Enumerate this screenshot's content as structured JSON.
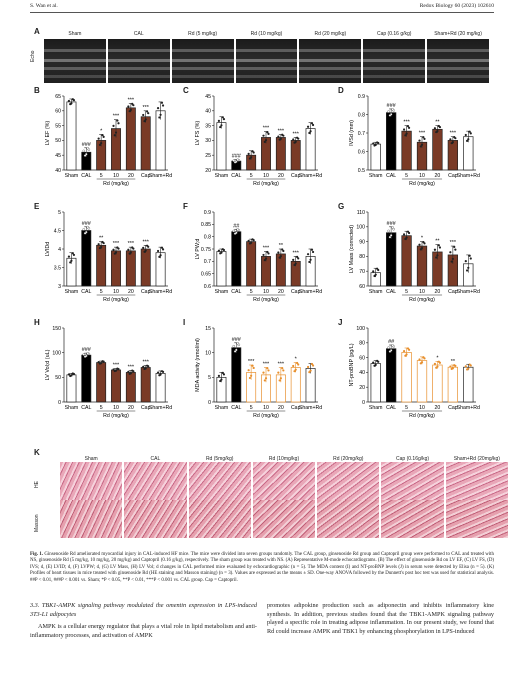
{
  "header": {
    "left": "S. Wan et al.",
    "right": "Redox Biology 60 (2023) 102610"
  },
  "panel_letters": [
    "A",
    "B",
    "C",
    "D",
    "E",
    "F",
    "G",
    "H",
    "I",
    "J",
    "K"
  ],
  "echo": {
    "side_label": "Echo",
    "groups": [
      "Sham",
      "CAL",
      "Rd (5 mg/kg)",
      "Rd (10 mg/kg)",
      "Rd (20 mg/kg)",
      "Cap (0.16 g/kg)",
      "Sham+Rd (20 mg/kg)"
    ]
  },
  "colors": {
    "sham": "#ffffff",
    "cal": "#000000",
    "rd": "#7a3a26",
    "cap": "#7a3a26",
    "shamrd": "#ffffff",
    "orange": "#e8902e",
    "dark": "#6a3020",
    "bar_outline": "#222"
  },
  "charts_common": {
    "xgroups": [
      "Sham",
      "CAL",
      "5",
      "10",
      "20",
      "Cap",
      "Sham+Rd"
    ],
    "xsub": "Rd (mg/kg)"
  },
  "chart_data": [
    {
      "id": "B",
      "type": "bar",
      "ylabel": "LV EF (%)",
      "ylim": [
        40,
        65
      ],
      "yticks": [
        40,
        45,
        50,
        55,
        60,
        65
      ],
      "categories": [
        "Sham",
        "CAL",
        "5",
        "10",
        "20",
        "Cap",
        "Sham+Rd"
      ],
      "values": [
        63,
        46,
        50,
        54,
        61,
        58,
        60
      ],
      "errors": [
        1,
        1.5,
        2,
        3,
        1.5,
        2,
        3
      ],
      "stars": [
        "",
        "###",
        "*",
        "***",
        "***",
        "***",
        ""
      ]
    },
    {
      "id": "C",
      "type": "bar",
      "ylabel": "LV FS (%)",
      "ylim": [
        20,
        45
      ],
      "yticks": [
        20,
        25,
        30,
        35,
        40,
        45
      ],
      "categories": [
        "Sham",
        "CAL",
        "5",
        "10",
        "20",
        "Cap",
        "Sham+Rd"
      ],
      "values": [
        36,
        23,
        25,
        31,
        31,
        30,
        34
      ],
      "errors": [
        2,
        0.5,
        1.5,
        2,
        1,
        1,
        2
      ],
      "stars": [
        "",
        "###",
        "",
        "***",
        "***",
        "***",
        ""
      ]
    },
    {
      "id": "D",
      "type": "bar",
      "ylabel": "IVSd (mm)",
      "ylim": [
        0.5,
        0.9
      ],
      "yticks": [
        0.5,
        0.6,
        0.7,
        0.8,
        0.9
      ],
      "categories": [
        "Sham",
        "CAL",
        "5",
        "10",
        "20",
        "Cap",
        "Sham+Rd"
      ],
      "values": [
        0.64,
        0.81,
        0.71,
        0.65,
        0.72,
        0.66,
        0.68
      ],
      "errors": [
        0.01,
        0.02,
        0.03,
        0.03,
        0.02,
        0.02,
        0.03
      ],
      "stars": [
        "",
        "###",
        "***",
        "***",
        "**",
        "***",
        ""
      ]
    },
    {
      "id": "E",
      "type": "bar",
      "ylabel": "LVIDd",
      "ylim": [
        3.0,
        5.0
      ],
      "yticks": [
        3.0,
        3.5,
        4.0,
        4.5,
        5.0
      ],
      "categories": [
        "Sham",
        "CAL",
        "5",
        "10",
        "20",
        "Cap",
        "Sham+Rd"
      ],
      "values": [
        3.75,
        4.5,
        4.1,
        3.95,
        3.95,
        4.0,
        3.9
      ],
      "errors": [
        0.15,
        0.1,
        0.1,
        0.1,
        0.1,
        0.1,
        0.15
      ],
      "stars": [
        "",
        "###",
        "**",
        "***",
        "***",
        "***",
        ""
      ]
    },
    {
      "id": "F",
      "type": "bar",
      "ylabel": "LV PW;d",
      "ylim": [
        0.6,
        0.9
      ],
      "yticks": [
        0.6,
        0.65,
        0.7,
        0.75,
        0.8,
        0.85,
        0.9
      ],
      "categories": [
        "Sham",
        "CAL",
        "5",
        "10",
        "20",
        "Cap",
        "Sham+Rd"
      ],
      "values": [
        0.74,
        0.82,
        0.78,
        0.72,
        0.73,
        0.7,
        0.72
      ],
      "errors": [
        0.01,
        0.01,
        0.01,
        0.02,
        0.02,
        0.02,
        0.03
      ],
      "stars": [
        "",
        "##",
        "",
        "***",
        "**",
        "***",
        ""
      ]
    },
    {
      "id": "G",
      "type": "bar",
      "ylabel": "LV Mass (corrected)",
      "ylim": [
        60,
        110
      ],
      "yticks": [
        60,
        70,
        80,
        90,
        100,
        110
      ],
      "categories": [
        "Sham",
        "CAL",
        "5",
        "10",
        "20",
        "Cap",
        "Sham+Rd"
      ],
      "values": [
        69,
        96,
        94,
        87,
        83,
        81,
        75
      ],
      "errors": [
        3,
        4,
        3,
        3,
        5,
        6,
        6
      ],
      "stars": [
        "",
        "###",
        "",
        "*",
        "**",
        "***",
        ""
      ]
    },
    {
      "id": "H",
      "type": "bar",
      "ylabel": "LV Vol;d (uL)",
      "ylim": [
        0,
        150
      ],
      "yticks": [
        0,
        50,
        100,
        150
      ],
      "categories": [
        "Sham",
        "CAL",
        "5",
        "10",
        "20",
        "Cap",
        "Sham+Rd"
      ],
      "values": [
        55,
        95,
        80,
        65,
        60,
        70,
        58
      ],
      "errors": [
        3,
        4,
        3,
        3,
        4,
        4,
        5
      ],
      "stars": [
        "",
        "###",
        "",
        "***",
        "***",
        "***",
        ""
      ]
    },
    {
      "id": "I",
      "type": "bar",
      "ylabel": "MDA activity (nmol/ml)",
      "ylim": [
        0,
        15
      ],
      "yticks": [
        0,
        5,
        10,
        15
      ],
      "categories": [
        "Sham",
        "CAL",
        "5",
        "10",
        "20",
        "Cap",
        "Sham+Rd"
      ],
      "values": [
        5,
        11,
        6,
        5.5,
        5.5,
        7,
        6.8
      ],
      "errors": [
        1,
        1,
        1.5,
        1.5,
        1.5,
        1,
        1
      ],
      "stars": [
        "",
        "###",
        "***",
        "***",
        "***",
        "*",
        ""
      ]
    },
    {
      "id": "J",
      "type": "bar",
      "ylabel": "NT-proBNP (pg/L)",
      "ylim": [
        0,
        100
      ],
      "yticks": [
        0,
        20,
        40,
        60,
        80,
        100
      ],
      "categories": [
        "Sham",
        "CAL",
        "5",
        "10",
        "20",
        "Cap",
        "Sham+Rd"
      ],
      "values": [
        52,
        72,
        67,
        56,
        50,
        47,
        47
      ],
      "errors": [
        4,
        5,
        6,
        5,
        5,
        3,
        4
      ],
      "stars": [
        "",
        "##",
        "",
        "",
        "*",
        "**",
        ""
      ]
    }
  ],
  "histo": {
    "groups": [
      "Sham",
      "CAL",
      "Rd (5mg/kg)",
      "Rd (10mg/kg)",
      "Rd (20mg/kg)",
      "Cap (0.16g/kg)",
      "Sham+Rd (20mg/kg)"
    ],
    "rows": [
      "HE",
      "Masson"
    ]
  },
  "caption": {
    "label": "Fig. 1.",
    "text": " Ginsenoside Rd ameliorated myocardial injury in CAL-induced HF mice. The mice were divided into seven groups randomly. The CAL group, ginsenoside Rd group and Captopril group were performed to CAL and treated with NS, ginsenoside Rd (5 mg/kg, 10 mg/kg, 20 mg/kg) and Captopril (0.16 g/kg), respectively. The sham group was treated with NS. (A) Representative M-mode echocardiograms. (B) The effect of ginsenoside Rd on LV EF, (C) LV FS, (D) IVS; d, (E) LVID; d, (F) LVPW; d, (G) LV Mass, (H) LV Vol; d changes in CAL performed mice evaluated by echocardiographic (n = 5). The MDA content (I) and NT-proBNP levels (J) in serum were detected by Elisa (n = 5). (K) Profiles of heart tissues in mice treated with ginsenoside Rd (HE staining and Masson staining) (n = 3). Values are expressed as the means ± SD. One-way ANOVA followed by the Dunnett's post hoc test was used for statistical analysis. ##P < 0.01, ###P < 0.001 vs. Sham; *P < 0.05, **P < 0.01, ***P < 0.001 vs. CAL group. Cap = Captopril."
  },
  "body": {
    "section": "3.3. TBK1-AMPK signaling pathway modulated the omentin expression in LPS-induced 3T3-L1 adipocytes",
    "left_para": "AMPK is a cellular energy regulator that plays a vital role in lipid metabolism and anti-inflammatory processes, and activation of AMPK",
    "right_para": "promotes adipokine production such as adiponectin and inhibits inflammatory kine synthesis. In addition, previous studies found that the TBK1-AMPK signaling pathway played a specific role in treating adipose inflammation. In our present study, we found that Rd could increase AMPK and TBK1 by enhancing phosphorylation in LPS-induced"
  }
}
